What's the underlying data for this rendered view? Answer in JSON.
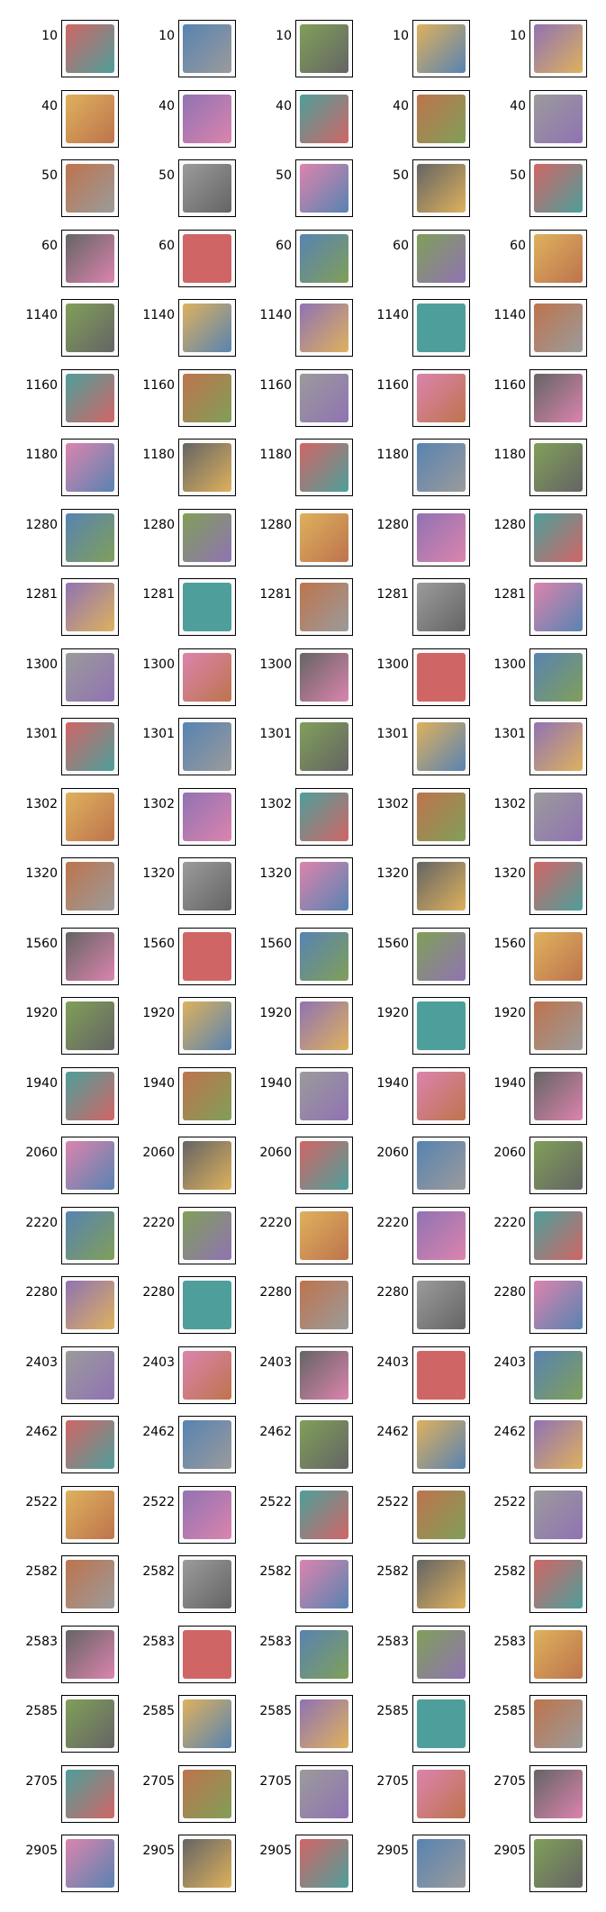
{
  "grid": {
    "columns": 5,
    "rows": [
      {
        "label": "10",
        "thumbs": [
          "product-sheet-icon",
          "portrait-photo-icon",
          "phone-icon",
          "comic-book-icon",
          "small-picture-icon"
        ]
      },
      {
        "label": "40",
        "thumbs": [
          "game-box-icon",
          "kimono-figure-icon",
          "book-cover-icon",
          "comic-cover-icon",
          "controller-grips-icon"
        ]
      },
      {
        "label": "50",
        "thumbs": [
          "video-game-poster-icon",
          "pink-cable-icon",
          "earphones-icon",
          "handheld-console-icon",
          "wooden-board-icon"
        ]
      },
      {
        "label": "60",
        "thumbs": [
          "console-bundle-icon",
          "retro-console-icon",
          "game-cartridge-icon",
          "console-set-icon",
          "gamepad-icon"
        ]
      },
      {
        "label": "1140",
        "thumbs": [
          "robot-figure-icon",
          "yellow-figure-icon",
          "framed-card-icon",
          "spiderman-figure-icon",
          "toy-animal-icon"
        ]
      },
      {
        "label": "1160",
        "thumbs": [
          "trading-card-icon",
          "card-pack-icon",
          "trading-card-icon",
          "small-card-icon",
          "pokemon-card-icon"
        ]
      },
      {
        "label": "1180",
        "thumbs": [
          "miniature-figure-icon",
          "warrior-figure-icon",
          "figure-set-icon",
          "playing-cards-icon",
          "gold-artwork-icon"
        ]
      },
      {
        "label": "1280",
        "thumbs": [
          "toy-ball-icon",
          "doll-icon",
          "drone-icon",
          "quadcopter-icon",
          "dinosaur-icon"
        ]
      },
      {
        "label": "1281",
        "thumbs": [
          "board-games-icon",
          "tools-icon",
          "game-pieces-icon",
          "toy-box-icon",
          "monopoly-box-icon"
        ]
      },
      {
        "label": "1300",
        "thumbs": [
          "drone-diagram-icon",
          "drone-icon",
          "rc-car-icon",
          "rc-parts-icon",
          "red-drone-icon"
        ]
      },
      {
        "label": "1301",
        "thumbs": [
          "pool-cue-icon",
          "baby-shoes-icon",
          "baby-booties-icon",
          "socks-icon",
          "darts-icon"
        ]
      },
      {
        "label": "1302",
        "thumbs": [
          "water-bottle-icon",
          "flip-flops-icon",
          "watch-icon",
          "tool-case-icon",
          "carabiner-icon"
        ]
      },
      {
        "label": "1320",
        "thumbs": [
          "mattress-icon",
          "humidifier-icon",
          "backpack-icon",
          "xylophone-icon",
          "baby-nest-icon"
        ]
      },
      {
        "label": "1560",
        "thumbs": [
          "mattress-icon",
          "metal-brackets-icon",
          "mattress-icon",
          "padlock-icon",
          "storage-box-icon"
        ]
      },
      {
        "label": "1920",
        "thumbs": [
          "flag-pillow-icon",
          "bedding-icon",
          "pillow-icon",
          "rods-icon",
          "green-cushion-icon"
        ]
      },
      {
        "label": "1940",
        "thumbs": [
          "food-bag-icon",
          "small-jar-icon",
          "coffee-pack-icon",
          "sauce-jar-icon",
          "candy-bag-icon"
        ]
      },
      {
        "label": "2060",
        "thumbs": [
          "floor-map-icon",
          "digital-clock-icon",
          "statue-icon",
          "alarm-clock-icon",
          "pendant-lamp-icon"
        ]
      },
      {
        "label": "2220",
        "thumbs": [
          "pet-tunnel-icon",
          "dog-sweater-icon",
          "cat-tree-icon",
          "pet-bed-icon",
          "dog-coat-icon"
        ]
      },
      {
        "label": "2280",
        "thumbs": [
          "magazine-icon",
          "magazine-icon",
          "small-photo-icon",
          "room-photo-icon",
          "magazine-stack-icon"
        ]
      },
      {
        "label": "2403",
        "thumbs": [
          "book-stack-icon",
          "book-collection-icon",
          "book-icon",
          "book-icon",
          "small-book-icon"
        ]
      },
      {
        "label": "2462",
        "thumbs": [
          "game-icon",
          "dark-tin-icon",
          "console-icon",
          "game-collection-icon",
          "game-case-icon"
        ]
      },
      {
        "label": "2522",
        "thumbs": [
          "paper-icon",
          "thin-strip-icon",
          "black-pad-icon",
          "folders-icon",
          "card-icon"
        ]
      },
      {
        "label": "2582",
        "thumbs": [
          "patio-heater-icon",
          "kitchen-scale-icon",
          "pergola-icon",
          "paving-tiles-icon",
          "garden-icon"
        ]
      },
      {
        "label": "2583",
        "thumbs": [
          "pool-cover-icon",
          "pool-icon",
          "above-ground-pool-icon",
          "pool-filter-icon",
          "pool-photo-icon"
        ]
      },
      {
        "label": "2585",
        "thumbs": [
          "wood-pieces-icon",
          "landscape-icon",
          "white-panel-icon",
          "timer-icon",
          "flower-basket-icon"
        ]
      },
      {
        "label": "2705",
        "thumbs": [
          "book-cover-icon",
          "text-page-icon",
          "novel-cover-icon",
          "small-book-icon",
          "orange-book-icon"
        ]
      },
      {
        "label": "2905",
        "thumbs": [
          "game-box-icon",
          "software-box-icon",
          "small-poster-icon",
          "painting-icon",
          "fantasy-cover-icon"
        ]
      }
    ],
    "colors": [
      "#c94b4b",
      "#3b6ea5",
      "#6b8f3c",
      "#d9a441",
      "#7d5ba6",
      "#2f8f8a",
      "#b35c2e",
      "#8a8a8a",
      "#d66fa0",
      "#4a4a4a"
    ]
  }
}
